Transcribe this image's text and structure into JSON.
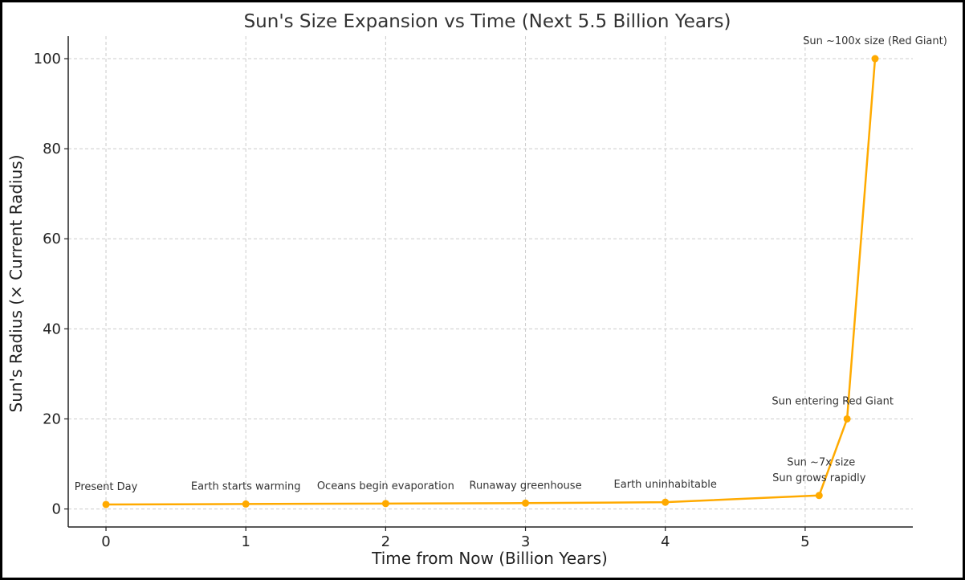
{
  "chart_data": {
    "type": "line",
    "title": "Sun's Size Expansion vs Time (Next 5.5 Billion Years)",
    "xlabel": "Time from Now (Billion Years)",
    "ylabel": "Sun's Radius (× Current Radius)",
    "xlim": [
      -0.27,
      5.77
    ],
    "ylim": [
      -4,
      105
    ],
    "x_ticks": [
      0,
      1,
      2,
      3,
      4,
      5
    ],
    "y_ticks": [
      0,
      20,
      40,
      60,
      80,
      100
    ],
    "grid": true,
    "colors": {
      "line": "#ffaa00",
      "grid": "#cccccc",
      "text": "#333333"
    },
    "series": [
      {
        "x": [
          0,
          1,
          2,
          3,
          4,
          5.1,
          5.3,
          5.5
        ],
        "y": [
          1,
          1.1,
          1.2,
          1.3,
          1.5,
          3,
          20,
          100
        ]
      }
    ],
    "annotations": [
      {
        "text": "Present Day",
        "x": 0,
        "y": 1
      },
      {
        "text": "Earth starts warming",
        "x": 1,
        "y": 1.1
      },
      {
        "text": "Oceans begin evaporation",
        "x": 2,
        "y": 1.2
      },
      {
        "text": "Runaway greenhouse",
        "x": 3,
        "y": 1.3
      },
      {
        "text": "Earth uninhabitable",
        "x": 4,
        "y": 1.5
      },
      {
        "text": "Sun grows rapidly",
        "x": 5.1,
        "y": 3
      },
      {
        "text": "Sun ~7x size",
        "x": 5.2,
        "y": 7
      },
      {
        "text": "Sun entering Red Giant",
        "x": 5.3,
        "y": 20
      },
      {
        "text": "Sun ~100x size (Red Giant)",
        "x": 5.5,
        "y": 100
      }
    ]
  }
}
